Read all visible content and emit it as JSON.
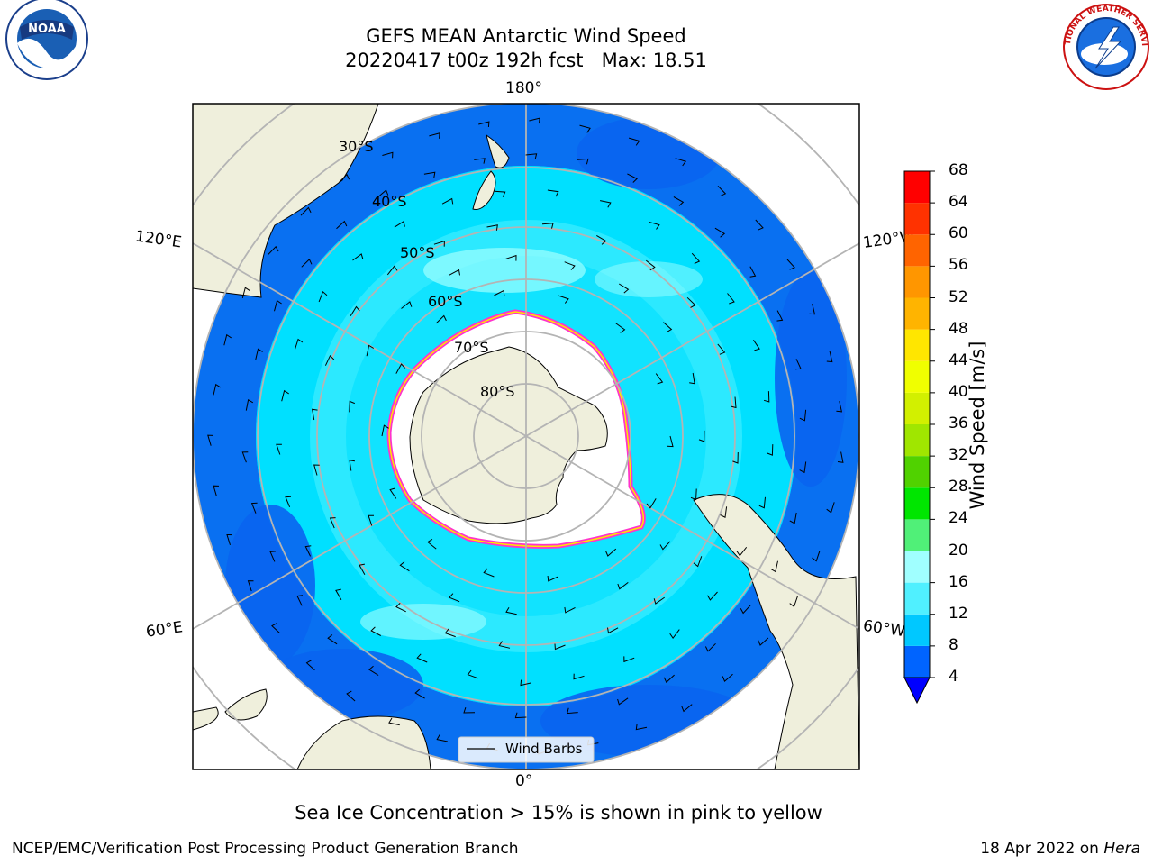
{
  "title_line1": "GEFS MEAN Antarctic Wind Speed",
  "title_line2": "20220417 t00z 192h fcst   Max: 18.51",
  "lon_labels": {
    "top": "180°",
    "bottom": "0°",
    "left_upper": "120°E",
    "left_lower": "60°E",
    "right_upper": "120°W",
    "right_lower": "60°W"
  },
  "lat_labels": [
    "30°S",
    "40°S",
    "50°S",
    "60°S",
    "70°S",
    "80°S"
  ],
  "legend": {
    "label": "Wind Barbs"
  },
  "colorbar": {
    "label": "Wind Speed [m/s]",
    "ticks": [
      4,
      8,
      12,
      16,
      20,
      24,
      28,
      32,
      36,
      40,
      44,
      48,
      52,
      56,
      60,
      64,
      68
    ],
    "colors": [
      "#0064ff",
      "#00c8ff",
      "#50f0ff",
      "#a0ffff",
      "#50f078",
      "#00e600",
      "#50d200",
      "#a0e600",
      "#d2f000",
      "#f0ff00",
      "#ffe600",
      "#ffb400",
      "#ff9600",
      "#ff6400",
      "#ff3200",
      "#ff0000"
    ],
    "extend_color": "#0000ff"
  },
  "colors": {
    "land": "#efefdc",
    "ocean_low": "#0a64f0",
    "ocean_mid": "#00e0ff",
    "ocean_high": "#60f4ff",
    "ice": "#ffffff",
    "ice_edge": "#ff33cc",
    "grid": "#b4b4b4"
  },
  "caption": "Sea Ice Concentration > 15% is shown in pink to yellow",
  "footer_left": "NCEP/EMC/Verification Post Processing Product Generation Branch",
  "footer_right_date": "18 Apr 2022 on ",
  "footer_right_host": "Hera",
  "logos": {
    "noaa": "NOAA",
    "nws": "NATIONAL WEATHER SERVICE"
  }
}
